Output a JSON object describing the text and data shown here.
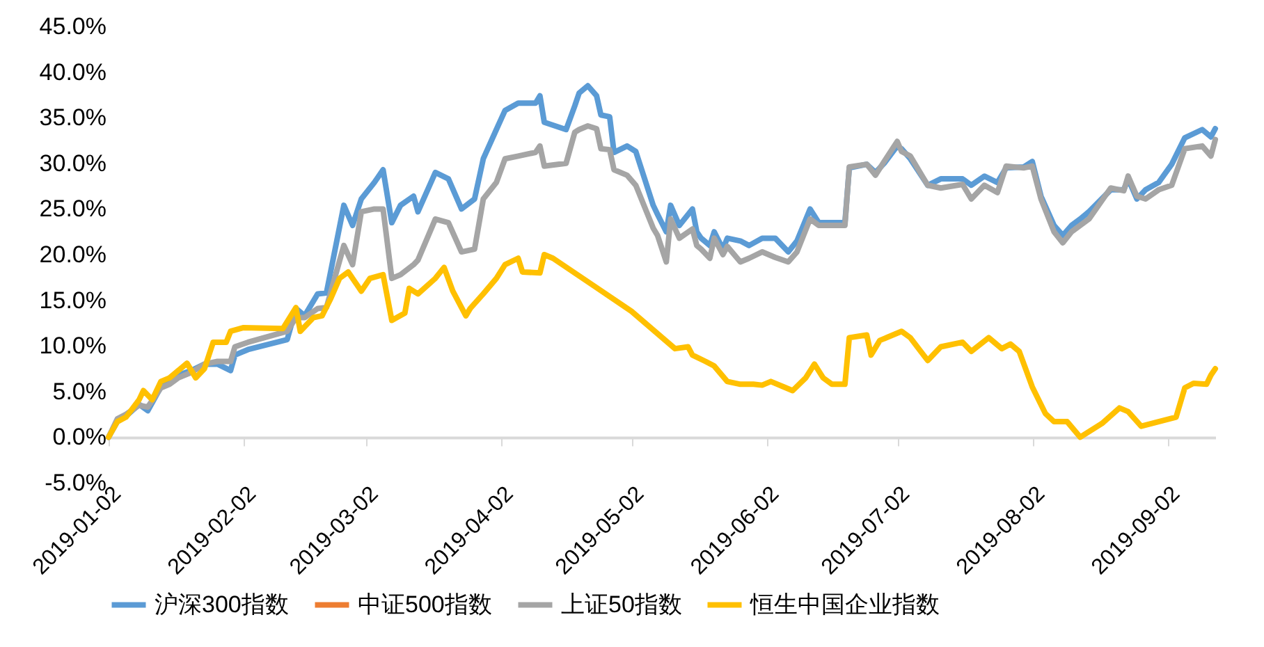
{
  "chart_data": {
    "type": "line",
    "x": [
      "2019-01-02",
      "2019-01-04",
      "2019-01-06",
      "2019-01-09",
      "2019-01-11",
      "2019-01-14",
      "2019-01-16",
      "2019-01-18",
      "2019-01-21",
      "2019-01-24",
      "2019-01-27",
      "2019-01-30",
      "2019-01-31",
      "2019-02-03",
      "2019-02-12",
      "2019-02-14",
      "2019-02-16",
      "2019-02-19",
      "2019-02-21",
      "2019-02-25",
      "2019-02-27",
      "2019-03-01",
      "2019-03-04",
      "2019-03-06",
      "2019-03-08",
      "2019-03-10",
      "2019-03-13",
      "2019-03-14",
      "2019-03-18",
      "2019-03-21",
      "2019-03-24",
      "2019-03-27",
      "2019-03-29",
      "2019-04-01",
      "2019-04-03",
      "2019-04-06",
      "2019-04-10",
      "2019-04-11",
      "2019-04-12",
      "2019-04-17",
      "2019-04-19",
      "2019-04-20",
      "2019-04-22",
      "2019-04-24",
      "2019-04-25",
      "2019-04-27",
      "2019-04-28",
      "2019-05-01",
      "2019-05-03",
      "2019-05-07",
      "2019-05-08",
      "2019-05-10",
      "2019-05-11",
      "2019-05-13",
      "2019-05-16",
      "2019-05-17",
      "2019-05-18",
      "2019-05-20",
      "2019-05-21",
      "2019-05-23",
      "2019-05-24",
      "2019-05-27",
      "2019-05-29",
      "2019-06-01",
      "2019-06-04",
      "2019-06-07",
      "2019-06-09",
      "2019-06-12",
      "2019-06-14",
      "2019-06-20",
      "2019-06-21",
      "2019-06-25",
      "2019-06-27",
      "2019-06-29",
      "2019-07-02",
      "2019-07-03",
      "2019-07-05",
      "2019-07-09",
      "2019-07-12",
      "2019-07-17",
      "2019-07-19",
      "2019-07-22",
      "2019-07-25",
      "2019-07-27",
      "2019-07-31",
      "2019-08-02",
      "2019-08-04",
      "2019-08-07",
      "2019-08-09",
      "2019-08-11",
      "2019-08-13",
      "2019-08-15",
      "2019-08-20",
      "2019-08-23",
      "2019-08-24",
      "2019-08-26",
      "2019-08-28",
      "2019-08-31",
      "2019-09-03",
      "2019-09-06",
      "2019-09-10",
      "2019-09-12",
      "2019-09-13"
    ],
    "series": [
      {
        "name": "沪深300指数",
        "color": "#5b9bd5",
        "values": [
          0,
          1.7,
          2.3,
          3.6,
          2.9,
          5.5,
          6.2,
          6.8,
          7.3,
          8.0,
          8.0,
          7.3,
          9.0,
          9.6,
          10.7,
          14.1,
          13.3,
          15.7,
          15.8,
          25.4,
          23.2,
          26.1,
          27.9,
          29.3,
          23.5,
          25.4,
          26.4,
          24.7,
          29.0,
          28.3,
          25.0,
          26.1,
          30.5,
          33.7,
          35.8,
          36.6,
          36.6,
          37.4,
          34.5,
          33.7,
          36.3,
          37.7,
          38.5,
          37.4,
          35.3,
          35.1,
          31.2,
          31.9,
          31.3,
          25.4,
          24.4,
          22.5,
          25.4,
          23.2,
          25.0,
          22.5,
          21.8,
          21.0,
          22.5,
          20.6,
          21.8,
          21.5,
          21.0,
          21.8,
          21.8,
          20.3,
          21.5,
          25.0,
          23.5,
          23.5,
          29.5,
          29.9,
          29.0,
          30.0,
          31.9,
          31.6,
          30.5,
          27.6,
          28.3,
          28.3,
          27.6,
          28.6,
          27.9,
          29.5,
          29.6,
          30.2,
          26.4,
          23.2,
          22.1,
          23.2,
          23.9,
          24.7,
          27.1,
          27.1,
          28.3,
          26.1,
          27.1,
          27.9,
          29.9,
          32.8,
          33.7,
          32.9,
          33.8
        ]
      },
      {
        "name": "中证500指数",
        "color": "#ed7d31",
        "values": [
          null,
          null,
          null,
          null,
          null,
          null,
          null,
          null,
          null,
          null,
          null,
          null,
          null,
          null,
          null,
          null,
          null,
          null,
          null,
          null,
          null,
          null,
          null,
          null,
          null,
          null,
          null,
          null,
          null,
          null,
          null,
          null,
          null,
          null,
          null,
          null,
          null,
          null,
          null,
          null,
          null,
          null,
          null,
          null,
          null,
          null,
          null,
          null,
          null,
          null,
          null,
          null,
          null,
          null,
          null,
          null,
          null,
          null,
          null,
          null,
          null,
          null,
          null,
          null,
          null,
          null,
          null,
          null,
          null,
          null,
          null,
          null,
          null,
          null,
          null,
          null,
          null,
          null,
          null,
          null,
          null,
          null,
          null,
          null,
          null,
          null,
          null,
          null,
          null,
          null,
          null,
          null,
          null,
          null,
          null,
          null,
          null,
          null,
          null,
          null,
          null,
          null,
          null
        ]
      },
      {
        "name": "上证50指数",
        "color": "#a5a5a5",
        "values": [
          0,
          2.0,
          2.5,
          3.5,
          3.3,
          5.4,
          5.8,
          6.5,
          7.1,
          8.0,
          8.3,
          8.3,
          9.9,
          10.4,
          11.6,
          13.1,
          13.1,
          14.1,
          14.2,
          21.0,
          18.9,
          24.7,
          25.0,
          25.0,
          17.4,
          17.8,
          18.9,
          19.4,
          23.9,
          23.5,
          20.3,
          20.6,
          26.1,
          27.9,
          30.5,
          30.8,
          31.2,
          31.9,
          29.7,
          30.0,
          33.4,
          33.7,
          34.1,
          33.8,
          31.6,
          31.5,
          29.3,
          28.7,
          27.6,
          22.9,
          22.1,
          19.2,
          23.9,
          21.8,
          22.8,
          21.0,
          20.6,
          19.6,
          21.8,
          20.0,
          20.9,
          19.2,
          19.6,
          20.3,
          19.7,
          19.2,
          20.3,
          23.9,
          23.2,
          23.2,
          29.6,
          29.9,
          28.7,
          30.2,
          32.4,
          31.3,
          30.8,
          27.6,
          27.3,
          27.7,
          26.1,
          27.6,
          26.8,
          29.7,
          29.5,
          29.7,
          26.1,
          22.5,
          21.3,
          22.5,
          23.2,
          23.9,
          27.3,
          27.0,
          28.6,
          26.4,
          26.1,
          27.1,
          27.6,
          31.6,
          31.9,
          30.8,
          32.6
        ]
      },
      {
        "name": "恒生中国企业指数",
        "color": "#ffc000",
        "x": [
          "2019-01-02",
          "2019-01-04",
          "2019-01-06",
          "2019-01-09",
          "2019-01-10",
          "2019-01-12",
          "2019-01-14",
          "2019-01-16",
          "2019-01-18",
          "2019-01-20",
          "2019-01-22",
          "2019-01-24",
          "2019-01-26",
          "2019-01-29",
          "2019-01-30",
          "2019-02-02",
          "2019-02-11",
          "2019-02-14",
          "2019-02-15",
          "2019-02-18",
          "2019-02-20",
          "2019-02-22",
          "2019-02-24",
          "2019-02-26",
          "2019-03-01",
          "2019-03-03",
          "2019-03-06",
          "2019-03-08",
          "2019-03-11",
          "2019-03-12",
          "2019-03-14",
          "2019-03-18",
          "2019-03-20",
          "2019-03-22",
          "2019-03-25",
          "2019-03-26",
          "2019-03-29",
          "2019-04-01",
          "2019-04-03",
          "2019-04-06",
          "2019-04-07",
          "2019-04-11",
          "2019-04-12",
          "2019-04-14",
          "2019-04-23",
          "2019-05-02",
          "2019-05-12",
          "2019-05-15",
          "2019-05-16",
          "2019-05-19",
          "2019-05-21",
          "2019-05-24",
          "2019-05-27",
          "2019-05-30",
          "2019-06-01",
          "2019-06-03",
          "2019-06-06",
          "2019-06-08",
          "2019-06-11",
          "2019-06-13",
          "2019-06-15",
          "2019-06-17",
          "2019-06-20",
          "2019-06-21",
          "2019-06-25",
          "2019-06-26",
          "2019-06-28",
          "2019-07-03",
          "2019-07-05",
          "2019-07-09",
          "2019-07-12",
          "2019-07-17",
          "2019-07-19",
          "2019-07-23",
          "2019-07-26",
          "2019-07-28",
          "2019-07-30",
          "2019-08-02",
          "2019-08-05",
          "2019-08-07",
          "2019-08-10",
          "2019-08-13",
          "2019-08-18",
          "2019-08-22",
          "2019-08-24",
          "2019-08-27",
          "2019-08-31",
          "2019-09-04",
          "2019-09-06",
          "2019-09-08",
          "2019-09-11",
          "2019-09-12",
          "2019-09-13"
        ],
        "values": [
          0,
          1.7,
          2.2,
          4.1,
          5.1,
          4.1,
          6.1,
          6.5,
          7.3,
          8.1,
          6.5,
          7.5,
          10.4,
          10.4,
          11.6,
          12.0,
          11.9,
          14.2,
          11.6,
          13.1,
          13.3,
          15.2,
          17.4,
          18.1,
          16.0,
          17.4,
          17.8,
          12.8,
          13.6,
          16.3,
          15.7,
          17.4,
          18.6,
          16.0,
          13.3,
          14.1,
          15.7,
          17.4,
          18.9,
          19.6,
          18.1,
          18.0,
          20.0,
          19.6,
          16.7,
          13.8,
          9.7,
          9.9,
          9.0,
          8.3,
          7.8,
          6.1,
          5.8,
          5.8,
          5.7,
          6.1,
          5.5,
          5.1,
          6.5,
          8.0,
          6.5,
          5.8,
          5.8,
          10.9,
          11.2,
          9.0,
          10.6,
          11.6,
          10.9,
          8.4,
          9.9,
          10.4,
          9.4,
          10.9,
          9.7,
          10.2,
          9.4,
          5.5,
          2.6,
          1.7,
          1.7,
          0,
          1.5,
          3.2,
          2.8,
          1.2,
          1.7,
          2.2,
          5.4,
          5.9,
          5.8,
          6.8,
          7.5
        ]
      }
    ],
    "xlim": [
      "2019-01-02",
      "2019-09-13"
    ],
    "xticks": [
      "2019-01-02",
      "2019-02-02",
      "2019-03-02",
      "2019-04-02",
      "2019-05-02",
      "2019-06-02",
      "2019-07-02",
      "2019-08-02",
      "2019-09-02"
    ],
    "ylim": [
      -5,
      45
    ],
    "yticks": [
      {
        "value": -5,
        "label": "-5.0%"
      },
      {
        "value": 0,
        "label": "0.0%"
      },
      {
        "value": 5,
        "label": "5.0%"
      },
      {
        "value": 10,
        "label": "10.0%"
      },
      {
        "value": 15,
        "label": "15.0%"
      },
      {
        "value": 20,
        "label": "20.0%"
      },
      {
        "value": 25,
        "label": "25.0%"
      },
      {
        "value": 30,
        "label": "30.0%"
      },
      {
        "value": 35,
        "label": "35.0%"
      },
      {
        "value": 40,
        "label": "40.0%"
      },
      {
        "value": 45,
        "label": "45.0%"
      }
    ],
    "legend": "bottom",
    "grid": false,
    "marker": "none",
    "line_style": "solid"
  }
}
